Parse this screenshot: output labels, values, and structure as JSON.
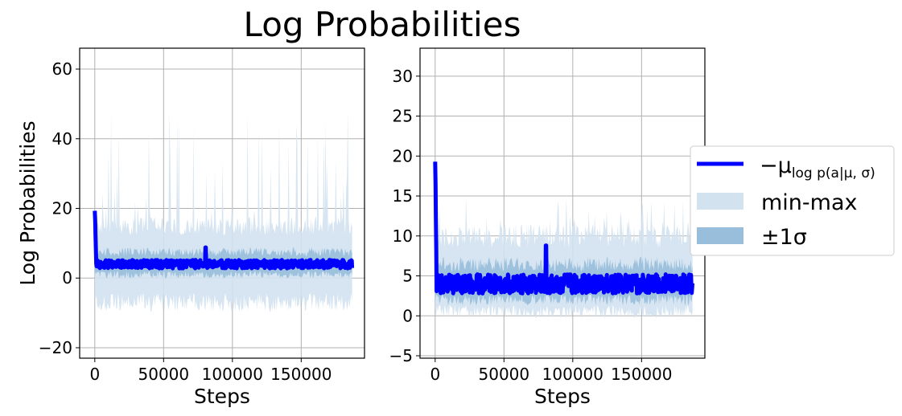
{
  "title": "Log Probabilities",
  "legend": {
    "mean": "−μ",
    "mean_subscript": "log p(a|μ, σ)",
    "minmax": "min-max",
    "std": "±1σ",
    "placement": "right"
  },
  "colors": {
    "mean": "#0000ff",
    "minmax": "#d2e2ef",
    "std": "#98bedc",
    "grid": "#b0b0b0"
  },
  "chart_data": [
    {
      "type": "line",
      "xlabel": "Steps",
      "ylabel": "Log Probabilities",
      "xlim": [
        -11000,
        196000
      ],
      "ylim": [
        -23,
        66
      ],
      "xticks": [
        0,
        50000,
        100000,
        150000
      ],
      "xtick_labels": [
        "0",
        "50000",
        "100000",
        "150000"
      ],
      "yticks": [
        -20,
        0,
        20,
        40,
        60
      ],
      "ytick_labels": [
        "−20",
        "0",
        "20",
        "40",
        "60"
      ],
      "grid": true,
      "x_max": 187000,
      "mean": {
        "typical": 4.0,
        "initial_spike": 19.3,
        "spike_steps": [
          80500
        ]
      },
      "std_band": {
        "lower": 1.0,
        "upper": 7.5
      },
      "minmax_band": {
        "lower": -7,
        "upper": 15,
        "outlier_max": 48
      }
    },
    {
      "type": "line",
      "xlabel": "Steps",
      "ylabel": "",
      "xlim": [
        -11000,
        196000
      ],
      "ylim": [
        -5.3,
        33.5
      ],
      "xticks": [
        0,
        50000,
        100000,
        150000
      ],
      "xtick_labels": [
        "0",
        "50000",
        "100000",
        "150000"
      ],
      "yticks": [
        -5,
        0,
        5,
        10,
        15,
        20,
        25,
        30
      ],
      "ytick_labels": [
        "−5",
        "0",
        "5",
        "10",
        "15",
        "20",
        "25",
        "30"
      ],
      "grid": true,
      "x_max": 187000,
      "mean": {
        "typical": 4.0,
        "initial_spike": 19.3,
        "spike_steps": [
          80500
        ]
      },
      "std_band": {
        "lower": 2.0,
        "upper": 6.5
      },
      "minmax_band": {
        "lower": 0.5,
        "upper": 10,
        "outlier_max": 14
      }
    }
  ]
}
